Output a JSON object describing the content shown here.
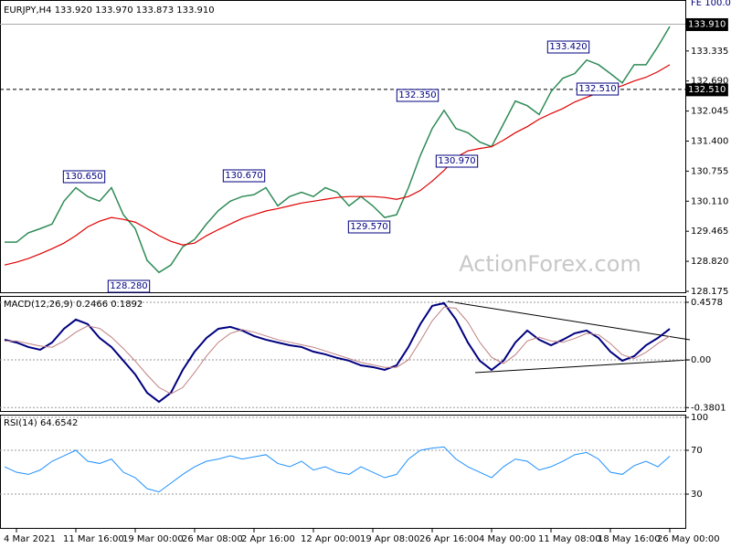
{
  "chart_data": [
    {
      "type": "line",
      "title": "EURJPY,H4  133.920 133.970 133.873 133.910",
      "watermark": "ActionForex.com",
      "categories": [
        null,
        "4 Mar 2021",
        null,
        null,
        null,
        null,
        "11 Mar 16:00",
        null,
        null,
        null,
        null,
        "19 Mar 00:00",
        null,
        null,
        null,
        null,
        "26 Mar 08:00",
        null,
        null,
        null,
        null,
        "2 Apr 16:00",
        null,
        null,
        null,
        null,
        "12 Apr 00:00",
        null,
        null,
        null,
        null,
        "19 Apr 08:00",
        null,
        null,
        null,
        null,
        "26 Apr 16:00",
        null,
        null,
        null,
        null,
        "4 May 00:00",
        null,
        null,
        null,
        null,
        "11 May 08:00",
        null,
        null,
        null,
        null,
        "18 May 16:00",
        null,
        null,
        null,
        null,
        "26 May 00:00"
      ],
      "series": [
        {
          "name": "EURJPY",
          "color": "#2e8b57",
          "width": 1.5,
          "values": [
            129.23,
            129.23,
            129.43,
            129.52,
            129.62,
            130.11,
            130.4,
            130.21,
            130.11,
            130.4,
            129.82,
            129.52,
            128.84,
            128.58,
            128.74,
            129.13,
            129.29,
            129.62,
            129.91,
            130.11,
            130.21,
            130.25,
            130.4,
            130.01,
            130.21,
            130.3,
            130.21,
            130.4,
            130.3,
            130.01,
            130.21,
            130.01,
            129.76,
            129.82,
            130.4,
            131.09,
            131.67,
            132.06,
            131.67,
            131.58,
            131.38,
            131.28,
            131.77,
            132.26,
            132.16,
            131.97,
            132.46,
            132.75,
            132.85,
            133.14,
            133.04,
            132.85,
            132.65,
            133.04,
            133.04,
            133.43,
            133.86
          ]
        },
        {
          "name": "MA",
          "color": "#e00000",
          "width": 1.2,
          "values": [
            128.74,
            128.8,
            128.88,
            128.98,
            129.09,
            129.21,
            129.37,
            129.56,
            129.68,
            129.76,
            129.72,
            129.66,
            129.52,
            129.37,
            129.25,
            129.17,
            129.21,
            129.37,
            129.5,
            129.62,
            129.74,
            129.82,
            129.9,
            129.95,
            130.01,
            130.07,
            130.11,
            130.15,
            130.19,
            130.21,
            130.21,
            130.21,
            130.19,
            130.15,
            130.21,
            130.34,
            130.54,
            130.77,
            131.05,
            131.19,
            131.24,
            131.28,
            131.42,
            131.58,
            131.71,
            131.87,
            131.99,
            132.1,
            132.24,
            132.34,
            132.44,
            132.51,
            132.59,
            132.69,
            132.77,
            132.89,
            133.04
          ]
        }
      ],
      "ylim": [
        128.155,
        134.37
      ],
      "yticks": [
        {
          "value": 133.335,
          "label": "133.335"
        },
        {
          "value": 132.69,
          "label": "132.690"
        },
        {
          "value": 132.045,
          "label": "132.045"
        },
        {
          "value": 131.4,
          "label": "131.400"
        },
        {
          "value": 130.755,
          "label": "130.755"
        },
        {
          "value": 130.11,
          "label": "130.110"
        },
        {
          "value": 129.465,
          "label": "129.465"
        },
        {
          "value": 128.82,
          "label": "128.820"
        },
        {
          "value": 128.175,
          "label": "128.175"
        }
      ],
      "grid": false,
      "price_lines": [
        {
          "value": 133.91,
          "label": "133.910",
          "dashed": false
        },
        {
          "value": 132.51,
          "label": "132.510",
          "dashed": true
        }
      ],
      "annotations": [
        "130.650",
        "128.280",
        "130.670",
        "129.570",
        "132.350",
        "130.970",
        "133.420",
        "132.510",
        "FE 100.0"
      ]
    },
    {
      "type": "line",
      "title": "MACD(12,26,9) 0.2466 0.1892",
      "series": [
        {
          "name": "MACD",
          "color": "#000080",
          "width": 2,
          "values": [
            0.16,
            0.138,
            0.102,
            0.08,
            0.138,
            0.247,
            0.32,
            0.284,
            0.174,
            0.102,
            -0.007,
            -0.116,
            -0.262,
            -0.334,
            -0.262,
            -0.08,
            0.065,
            0.174,
            0.247,
            0.262,
            0.233,
            0.189,
            0.16,
            0.138,
            0.116,
            0.102,
            0.065,
            0.044,
            0.015,
            -0.007,
            -0.044,
            -0.058,
            -0.08,
            -0.044,
            0.102,
            0.284,
            0.429,
            0.451,
            0.32,
            0.138,
            -0.007,
            -0.08,
            -0.007,
            0.138,
            0.233,
            0.16,
            0.116,
            0.16,
            0.211,
            0.233,
            0.174,
            0.065,
            -0.007,
            0.029,
            0.116,
            0.174,
            0.2466
          ]
        },
        {
          "name": "Signal",
          "color": "#c08080",
          "width": 1,
          "values": [
            0.15,
            0.15,
            0.13,
            0.11,
            0.1,
            0.15,
            0.22,
            0.27,
            0.25,
            0.18,
            0.09,
            -0.01,
            -0.12,
            -0.22,
            -0.27,
            -0.22,
            -0.1,
            0.03,
            0.14,
            0.21,
            0.24,
            0.22,
            0.19,
            0.16,
            0.14,
            0.12,
            0.1,
            0.07,
            0.04,
            0.01,
            -0.02,
            -0.04,
            -0.06,
            -0.06,
            0.0,
            0.15,
            0.31,
            0.42,
            0.41,
            0.3,
            0.14,
            0.02,
            -0.03,
            0.04,
            0.15,
            0.18,
            0.15,
            0.14,
            0.17,
            0.21,
            0.2,
            0.13,
            0.04,
            0.01,
            0.06,
            0.13,
            0.1892
          ]
        }
      ],
      "ylim": [
        -0.407,
        0.501
      ],
      "yticks": [
        0.4578,
        {
          "value": 0,
          "label": "0.00"
        },
        -0.3801
      ],
      "grid": true
    },
    {
      "type": "line",
      "title": "RSI(14) 64.6542",
      "series": [
        {
          "name": "RSI",
          "color": "#1e90ff",
          "width": 1,
          "values": [
            55,
            50,
            48,
            52,
            60,
            65,
            70,
            60,
            58,
            62,
            50,
            45,
            35,
            32,
            40,
            48,
            55,
            60,
            62,
            65,
            62,
            64,
            66,
            58,
            55,
            60,
            52,
            55,
            50,
            48,
            55,
            50,
            45,
            48,
            62,
            70,
            72,
            73,
            62,
            55,
            50,
            45,
            55,
            62,
            60,
            52,
            55,
            60,
            66,
            68,
            62,
            50,
            48,
            56,
            60,
            55,
            64.6542
          ]
        }
      ],
      "ylim": [
        0,
        101.7
      ],
      "yticks": [
        100,
        70,
        30
      ],
      "grid": true
    }
  ]
}
